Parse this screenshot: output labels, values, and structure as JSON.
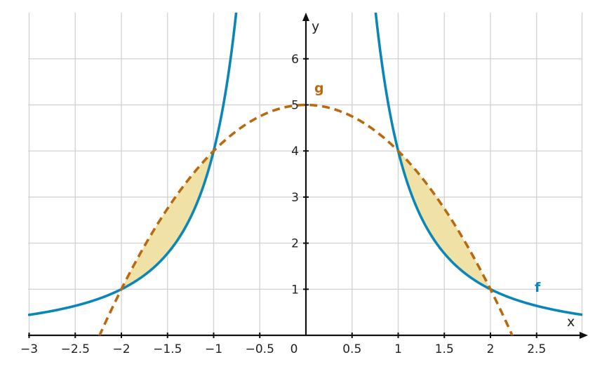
{
  "chart_data": {
    "type": "line",
    "xlim": [
      -3,
      3
    ],
    "ylim": [
      0,
      7
    ],
    "xlabel": "x",
    "ylabel": "y",
    "x_ticks": [
      -3,
      -2.5,
      -2,
      -1.5,
      -1,
      -0.5,
      0,
      0.5,
      1,
      1.5,
      2,
      2.5
    ],
    "x_tick_labels": [
      "−3",
      "−2.5",
      "−2",
      "−1.5",
      "−1",
      "−0.5",
      "0",
      "0.5",
      "1",
      "1.5",
      "2",
      "2.5"
    ],
    "y_ticks": [
      1,
      2,
      3,
      4,
      5,
      6
    ],
    "y_tick_labels": [
      "1",
      "2",
      "3",
      "4",
      "5",
      "6"
    ],
    "grid": true,
    "series": [
      {
        "name": "f",
        "style": "solid",
        "color": "#0a86b8",
        "x": [
          -3,
          -2.5,
          -2,
          -1.5,
          -1.25,
          -1,
          -0.75,
          -0.6,
          0.6,
          0.75,
          1,
          1.25,
          1.5,
          2,
          2.5,
          3
        ],
        "y": [
          0.44,
          0.64,
          1,
          1.78,
          2.56,
          4,
          7.11,
          11.1,
          11.1,
          7.11,
          4,
          2.56,
          1.78,
          1,
          0.64,
          0.44
        ]
      },
      {
        "name": "g",
        "style": "dashed",
        "color": "#b96a0f",
        "x": [
          -2.24,
          -2,
          -1.5,
          -1,
          -0.5,
          0,
          0.5,
          1,
          1.5,
          2,
          2.24
        ],
        "y": [
          0,
          1,
          2.75,
          4,
          4.75,
          5,
          4.75,
          4,
          2.75,
          1,
          0
        ]
      }
    ],
    "shaded_regions": [
      {
        "between": [
          "f",
          "g"
        ],
        "x_from": -2,
        "x_to": -1,
        "color": "#f0e2a6"
      },
      {
        "between": [
          "f",
          "g"
        ],
        "x_from": 1,
        "x_to": 2,
        "color": "#f0e2a6"
      }
    ],
    "curve_labels": [
      {
        "series": "g",
        "text": "g",
        "color": "#b96a0f"
      },
      {
        "series": "f",
        "text": "f",
        "color": "#0a86b8"
      }
    ]
  }
}
